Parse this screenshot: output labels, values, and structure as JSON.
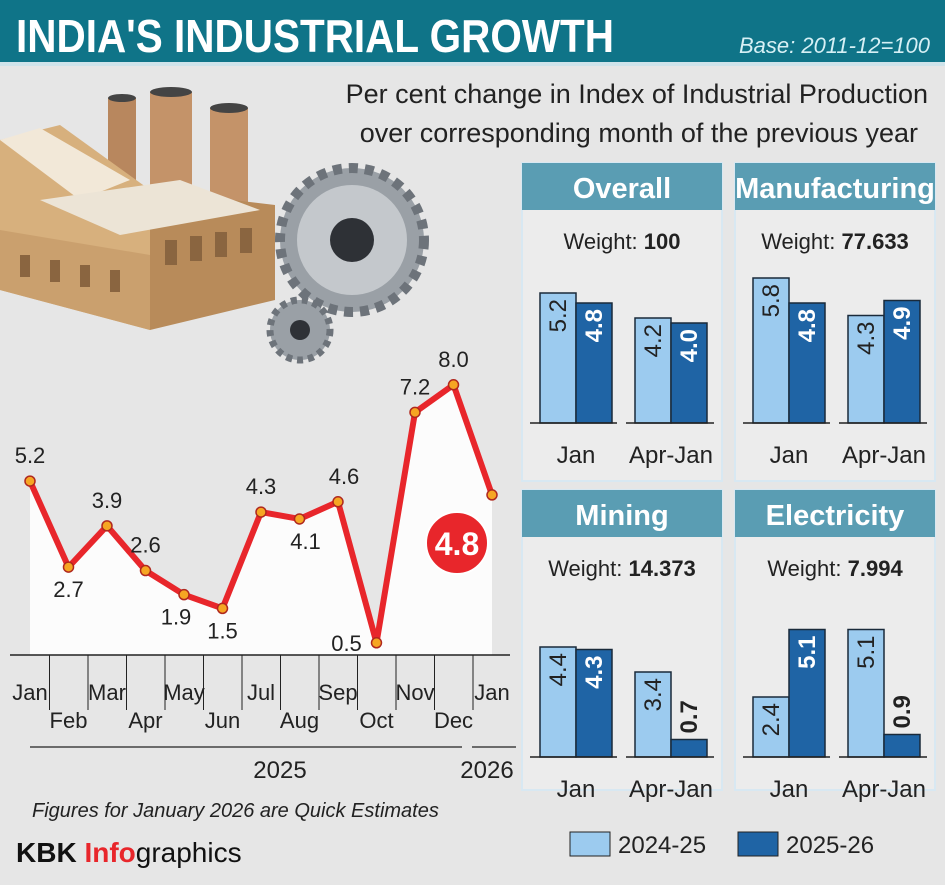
{
  "header": {
    "title": "INDIA'S INDUSTRIAL GROWTH",
    "base": "Base: 2011-12=100"
  },
  "subtitle": [
    "Per cent change in Index of Industrial Production",
    "over corresponding month of the previous year"
  ],
  "footnote": "Figures for January 2026 are Quick Estimates",
  "brand": {
    "part1": "KBK ",
    "part2": "Info",
    "part3": "graphics"
  },
  "colors": {
    "header": "#0f7488",
    "panel_header": "#5a9db3",
    "line": "#e8262b",
    "light_bar": "#9ccbef",
    "dark_bar": "#1f64a5",
    "background": "#e6e6e6"
  },
  "chart_data": [
    {
      "type": "line",
      "categories": [
        "Jan",
        "Feb",
        "Mar",
        "Apr",
        "May",
        "Jun",
        "Jul",
        "Aug",
        "Sep",
        "Oct",
        "Nov",
        "Dec",
        "Jan"
      ],
      "year_labels": [
        "2025",
        "2026"
      ],
      "values": [
        5.2,
        2.7,
        3.9,
        2.6,
        1.9,
        1.5,
        4.3,
        4.1,
        4.6,
        0.5,
        7.2,
        8.0,
        4.8
      ],
      "value_labels": [
        "5.2",
        "2.7",
        "3.9",
        "2.6",
        "1.9",
        "1.5",
        "4.3",
        "4.1",
        "4.6",
        "0.5",
        "7.2",
        "8.0",
        "4.8"
      ],
      "highlight_last": true
    },
    {
      "type": "bar",
      "panels": [
        {
          "title": "Overall",
          "weight_label": "Weight: ",
          "weight": "100",
          "categories": [
            "Jan",
            "Apr-Jan"
          ],
          "series": [
            {
              "name": "2024-25",
              "values": [
                5.2,
                4.2
              ],
              "labels": [
                "5.2",
                "4.2"
              ]
            },
            {
              "name": "2025-26",
              "values": [
                4.8,
                4.0
              ],
              "labels": [
                "4.8",
                "4.0"
              ]
            }
          ]
        },
        {
          "title": "Manufacturing",
          "weight_label": "Weight: ",
          "weight": "77.633",
          "categories": [
            "Jan",
            "Apr-Jan"
          ],
          "series": [
            {
              "name": "2024-25",
              "values": [
                5.8,
                4.3
              ],
              "labels": [
                "5.8",
                "4.3"
              ]
            },
            {
              "name": "2025-26",
              "values": [
                4.8,
                4.9
              ],
              "labels": [
                "4.8",
                "4.9"
              ]
            }
          ]
        },
        {
          "title": "Mining",
          "weight_label": "Weight: ",
          "weight": "14.373",
          "categories": [
            "Jan",
            "Apr-Jan"
          ],
          "series": [
            {
              "name": "2024-25",
              "values": [
                4.4,
                3.4
              ],
              "labels": [
                "4.4",
                "3.4"
              ]
            },
            {
              "name": "2025-26",
              "values": [
                4.3,
                0.7
              ],
              "labels": [
                "4.3",
                "0.7"
              ]
            }
          ]
        },
        {
          "title": "Electricity",
          "weight_label": "Weight: ",
          "weight": "7.994",
          "categories": [
            "Jan",
            "Apr-Jan"
          ],
          "series": [
            {
              "name": "2024-25",
              "values": [
                2.4,
                5.1
              ],
              "labels": [
                "2.4",
                "5.1"
              ]
            },
            {
              "name": "2025-26",
              "values": [
                5.1,
                0.9
              ],
              "labels": [
                "5.1",
                "0.9"
              ]
            }
          ]
        }
      ],
      "legend": [
        "2024-25",
        "2025-26"
      ],
      "legend_position": "bottom-right"
    }
  ]
}
